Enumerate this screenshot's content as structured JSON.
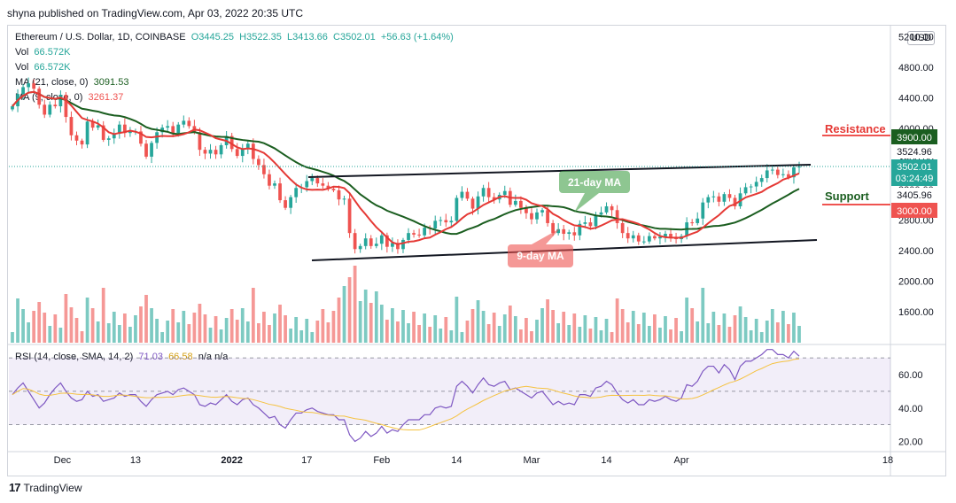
{
  "header": {
    "publisher": "shyna published on TradingView.com, Apr 03, 2022 20:35 UTC"
  },
  "legend": {
    "symbol": "Ethereum / U.S. Dollar, 1D, COINBASE",
    "open": "O3445.25",
    "high": "H3522.35",
    "low": "L3413.66",
    "close": "C3502.01",
    "change": "+56.63 (+1.64%)",
    "vol1_label": "Vol",
    "vol1_value": "66.572K",
    "vol2_label": "Vol",
    "vol2_value": "66.572K",
    "ma1_label": "MA (21, close, 0)",
    "ma1_value": "3091.53",
    "ma2_label": "MA (9, close, 0)",
    "ma2_value": "3261.37",
    "rsi_label": "RSI (14, close, SMA, 14, 2)",
    "rsi_value": "71.03",
    "rsi_sma_value": "66.58",
    "rsi_na": "n/a  n/a"
  },
  "currency": "USD",
  "footer": {
    "brand": "TradingView"
  },
  "annotations": {
    "resistance": "Resistance",
    "support": "Support",
    "ma21": "21-day MA",
    "ma9": "9-day MA"
  },
  "price_labels": [
    {
      "value": "3900.00",
      "color": "#1b5e20",
      "kind": "box"
    },
    {
      "value": "3524.96",
      "color": "#131722",
      "kind": "text"
    },
    {
      "value": "3502.01\n03:24:49",
      "color": "#26a69a",
      "kind": "box2"
    },
    {
      "value": "3405.96",
      "color": "#131722",
      "kind": "text"
    },
    {
      "value": "3000.00",
      "color": "#ef5350",
      "kind": "box"
    }
  ],
  "colors": {
    "up": "#26a69a",
    "down": "#ef5350",
    "ma21": "#1b5e20",
    "ma9": "#e53935",
    "rsi": "#7e57c2",
    "rsi_sma": "#f5c241",
    "resistance": "#ef5350",
    "support": "#ef5350"
  },
  "chart_data": {
    "type": "candlestick",
    "y_ticks": [
      5200,
      4800,
      4400,
      4000,
      3600,
      3200,
      2800,
      2400,
      2000,
      1600
    ],
    "y_tick_labels": [
      "5200.00",
      "4800.00",
      "4400.00",
      "4000.00",
      "3600.00",
      "3200.00",
      "2800.00",
      "2400.00",
      "2000.00",
      "1600.00"
    ],
    "x_ticks": [
      "Dec",
      "13",
      "2022",
      "17",
      "Feb",
      "14",
      "Mar",
      "14",
      "Apr",
      "18"
    ],
    "rsi_ticks": [
      60,
      40,
      20
    ],
    "rsi_tick_labels": [
      "60.00",
      "40.00",
      "20.00"
    ],
    "close": [
      4290,
      4450,
      4540,
      4590,
      4520,
      4310,
      4180,
      4310,
      4290,
      4440,
      4150,
      3910,
      3840,
      3790,
      4090,
      4010,
      4040,
      3850,
      3870,
      3930,
      4050,
      3940,
      3960,
      3960,
      3800,
      3630,
      3810,
      3950,
      4010,
      4030,
      3940,
      4050,
      4100,
      4030,
      3950,
      3720,
      3670,
      3720,
      3660,
      3780,
      3900,
      3730,
      3640,
      3740,
      3800,
      3600,
      3520,
      3400,
      3250,
      3280,
      3060,
      2960,
      3100,
      3220,
      3230,
      3310,
      3350,
      3280,
      3250,
      3210,
      3190,
      3070,
      3080,
      2630,
      2420,
      2460,
      2560,
      2460,
      2490,
      2600,
      2450,
      2500,
      2420,
      2540,
      2630,
      2610,
      2600,
      2700,
      2690,
      2790,
      2800,
      2770,
      2790,
      3090,
      3170,
      3080,
      2950,
      3110,
      3220,
      3100,
      3070,
      3130,
      3180,
      3000,
      3050,
      2960,
      2890,
      2810,
      2900,
      2930,
      2760,
      2630,
      2680,
      2620,
      2640,
      2600,
      2750,
      2770,
      2720,
      2870,
      2900,
      2980,
      2930,
      2760,
      2630,
      2560,
      2600,
      2520,
      2520,
      2590,
      2560,
      2580,
      2620,
      2580,
      2550,
      2590,
      2770,
      2760,
      2820,
      3030,
      3100,
      3110,
      3040,
      3140,
      3090,
      2980,
      3150,
      3230,
      3240,
      3300,
      3350,
      3450,
      3460,
      3390,
      3400,
      3360,
      3490,
      3500
    ],
    "volume_note": "volume bars shown in lower pane",
    "rsi": [
      48,
      52,
      55,
      50,
      45,
      40,
      43,
      48,
      52,
      55,
      50,
      46,
      44,
      45,
      50,
      47,
      48,
      44,
      45,
      46,
      49,
      47,
      48,
      48,
      44,
      41,
      45,
      48,
      49,
      50,
      48,
      51,
      52,
      50,
      48,
      42,
      41,
      43,
      42,
      45,
      48,
      44,
      42,
      45,
      46,
      42,
      40,
      37,
      34,
      35,
      30,
      28,
      33,
      37,
      37,
      39,
      40,
      38,
      37,
      36,
      36,
      33,
      33,
      24,
      20,
      22,
      26,
      23,
      25,
      29,
      25,
      27,
      26,
      30,
      33,
      33,
      33,
      36,
      36,
      40,
      41,
      40,
      41,
      53,
      56,
      53,
      49,
      54,
      58,
      54,
      53,
      55,
      56,
      51,
      52,
      50,
      48,
      46,
      49,
      50,
      46,
      42,
      44,
      42,
      43,
      42,
      48,
      48,
      47,
      52,
      53,
      56,
      54,
      49,
      45,
      43,
      45,
      42,
      42,
      45,
      44,
      45,
      47,
      45,
      44,
      46,
      54,
      53,
      56,
      62,
      65,
      65,
      61,
      66,
      63,
      57,
      65,
      68,
      68,
      70,
      72,
      75,
      75,
      72,
      72,
      70,
      74,
      71
    ]
  }
}
